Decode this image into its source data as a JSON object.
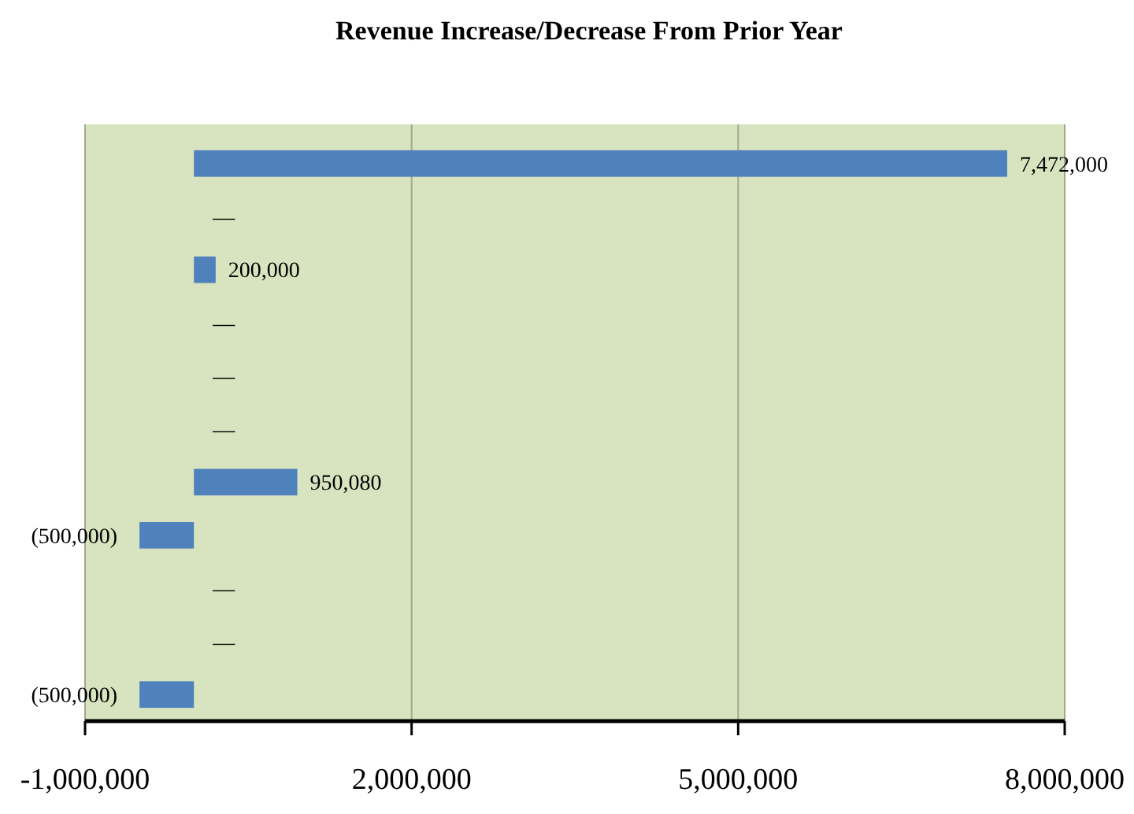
{
  "chart_data": {
    "type": "bar",
    "orientation": "horizontal",
    "title": "Revenue Increase/Decrease From Prior Year",
    "categories": [
      null,
      null,
      null,
      null,
      null,
      null,
      null,
      null,
      null,
      null,
      null
    ],
    "values": [
      7472000,
      0,
      200000,
      0,
      0,
      0,
      950080,
      -500000,
      0,
      0,
      -500000
    ],
    "value_labels": [
      "7,472,000",
      "—",
      "200,000",
      "—",
      "—",
      "—",
      "950,080",
      "(500,000)",
      "—",
      "—",
      "(500,000)"
    ],
    "color": "#4f81bd",
    "xlim": [
      -1000000,
      8000000
    ],
    "xticks": [
      {
        "value": -1000000,
        "label": "-1,000,000"
      },
      {
        "value": 2000000,
        "label": "2,000,000"
      },
      {
        "value": 5000000,
        "label": "5,000,000"
      },
      {
        "value": 8000000,
        "label": "8,000,000"
      }
    ],
    "grid": "x"
  }
}
